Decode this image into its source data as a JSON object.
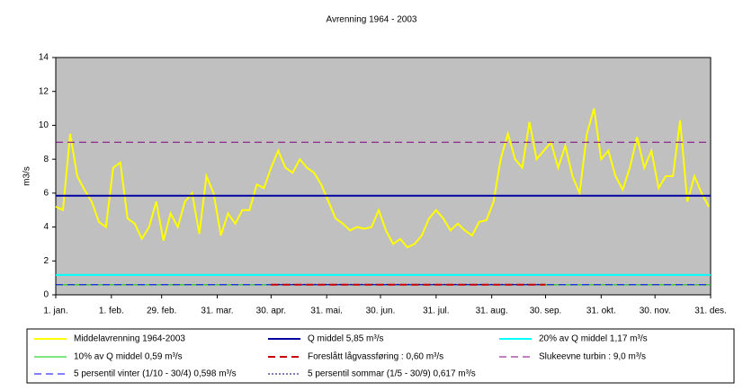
{
  "chart_data": {
    "type": "line",
    "title": "Avrenning 1964 - 2003",
    "ylabel": "m3/s",
    "xlim": [
      1,
      366
    ],
    "ylim": [
      0,
      14
    ],
    "yticks": [
      0,
      2,
      4,
      6,
      8,
      10,
      12,
      14
    ],
    "xticks": [
      {
        "value": 1,
        "label": "1. jan."
      },
      {
        "value": 32,
        "label": "1. feb."
      },
      {
        "value": 60,
        "label": "29. feb."
      },
      {
        "value": 91,
        "label": "31. mar."
      },
      {
        "value": 121,
        "label": "30. apr."
      },
      {
        "value": 152,
        "label": "31. mai."
      },
      {
        "value": 182,
        "label": "30. jun."
      },
      {
        "value": 213,
        "label": "31. jul."
      },
      {
        "value": 244,
        "label": "31. aug."
      },
      {
        "value": 274,
        "label": "30. sep."
      },
      {
        "value": 305,
        "label": "31. okt."
      },
      {
        "value": 335,
        "label": "30. nov."
      },
      {
        "value": 366,
        "label": "31. des."
      }
    ],
    "background": "#c0c0c0",
    "series": [
      {
        "name": "Middelavrenning 1964-2003",
        "color": "#ffff00",
        "style": "solid",
        "width": 2,
        "x": [
          1,
          5,
          9,
          13,
          17,
          21,
          25,
          29,
          33,
          37,
          41,
          45,
          49,
          53,
          57,
          61,
          65,
          69,
          73,
          77,
          81,
          85,
          89,
          93,
          97,
          101,
          105,
          109,
          113,
          117,
          121,
          125,
          129,
          133,
          137,
          141,
          145,
          149,
          153,
          157,
          161,
          165,
          169,
          173,
          177,
          181,
          185,
          189,
          193,
          197,
          201,
          205,
          209,
          213,
          217,
          221,
          225,
          229,
          233,
          237,
          241,
          245,
          249,
          253,
          257,
          261,
          265,
          269,
          273,
          277,
          281,
          285,
          289,
          293,
          297,
          301,
          305,
          309,
          313,
          317,
          321,
          325,
          329,
          333,
          337,
          341,
          345,
          349,
          353,
          357,
          361,
          365
        ],
        "values": [
          5.2,
          5.0,
          9.5,
          7.0,
          6.2,
          5.5,
          4.3,
          4.0,
          7.5,
          7.8,
          4.5,
          4.2,
          3.3,
          4.0,
          5.5,
          3.2,
          4.8,
          4.0,
          5.5,
          6.0,
          3.6,
          7.0,
          6.0,
          3.5,
          4.8,
          4.2,
          5.0,
          5.0,
          6.5,
          6.3,
          7.5,
          8.5,
          7.5,
          7.2,
          8.0,
          7.5,
          7.2,
          6.5,
          5.5,
          4.5,
          4.2,
          3.8,
          4.0,
          3.9,
          4.0,
          5.0,
          3.8,
          3.0,
          3.3,
          2.8,
          3.0,
          3.5,
          4.5,
          5.0,
          4.5,
          3.8,
          4.2,
          3.8,
          3.5,
          4.3,
          4.4,
          5.5,
          8.0,
          9.5,
          8.0,
          7.5,
          10.2,
          8.0,
          8.5,
          9.0,
          7.5,
          8.8,
          7.0,
          6.0,
          9.5,
          11.0,
          8.0,
          8.5,
          7.0,
          6.2,
          7.5,
          9.3,
          7.5,
          8.5,
          6.3,
          7.0,
          7.0,
          10.3,
          5.5,
          7.0,
          6.0,
          5.2
        ]
      },
      {
        "name": "Q middel  5,85 m³/s",
        "color": "#0000a0",
        "style": "solid",
        "width": 2,
        "x": [
          1,
          366
        ],
        "values": [
          5.85,
          5.85
        ]
      },
      {
        "name": "20% av Q middel 1,17 m³/s",
        "color": "#00ffff",
        "style": "solid",
        "width": 2,
        "x": [
          1,
          366
        ],
        "values": [
          1.17,
          1.17
        ]
      },
      {
        "name": "10% av Q middel 0,59 m³/s",
        "color": "#00cc00",
        "style": "solid",
        "width": 1,
        "x": [
          1,
          366
        ],
        "values": [
          0.59,
          0.59
        ]
      },
      {
        "name": "Foreslått lågvassføring : 0,60 m³/s",
        "color": "#cc0000",
        "style": "dashed",
        "width": 2,
        "x": [
          121,
          274
        ],
        "values": [
          0.6,
          0.6
        ]
      },
      {
        "name": "Slukeevne turbin :  9,0 m³/s",
        "color": "#800080",
        "style": "dashed",
        "width": 1,
        "x": [
          1,
          366
        ],
        "values": [
          9.0,
          9.0
        ]
      },
      {
        "name": "5 persentil vinter (1/10 - 30/4)  0,598 m³/s",
        "color": "#0000ff",
        "style": "dashed",
        "width": 1,
        "x": [
          1,
          366
        ],
        "values": [
          0.598,
          0.598
        ]
      },
      {
        "name": "5 persentil sommar (1/5 - 30/9)  0,617 m³/s",
        "color": "#000080",
        "style": "dotted",
        "width": 1,
        "x": [
          121,
          274
        ],
        "values": [
          0.617,
          0.617
        ]
      }
    ]
  }
}
